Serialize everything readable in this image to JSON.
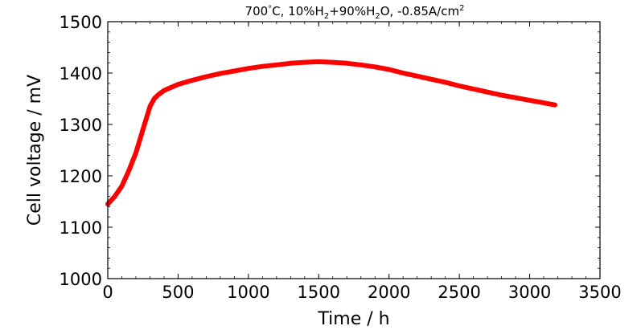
{
  "chart_data": {
    "type": "line",
    "title": {
      "p1": "700",
      "p2": "°",
      "p3": "C, 10%H",
      "p4": "2",
      "p5": "+90%H",
      "p6": "2",
      "p7": "O, -0.85A/cm",
      "p8": "2"
    },
    "xlabel": "Time / h",
    "ylabel": "Cell voltage / mV",
    "xlim": [
      0,
      3500
    ],
    "ylim": [
      1000,
      1500
    ],
    "xticks": [
      "0",
      "500",
      "1000",
      "1500",
      "2000",
      "2500",
      "3000",
      "3500"
    ],
    "yticks": [
      "1000",
      "1100",
      "1200",
      "1300",
      "1400",
      "1500"
    ],
    "grid": false,
    "series_color": "#ff0000",
    "series": [
      {
        "x": [
          0,
          50,
          100,
          150,
          200,
          250,
          300,
          330,
          360,
          400,
          450,
          500,
          600,
          700,
          800,
          900,
          1000,
          1100,
          1200,
          1300,
          1400,
          1500,
          1600,
          1700,
          1800,
          1900,
          2000,
          2100,
          2200,
          2300,
          2400,
          2500,
          2600,
          2700,
          2800,
          2900,
          3000,
          3100,
          3180
        ],
        "y": [
          1145,
          1160,
          1180,
          1210,
          1245,
          1290,
          1335,
          1350,
          1358,
          1366,
          1372,
          1378,
          1386,
          1393,
          1399,
          1404,
          1409,
          1413,
          1416,
          1419,
          1421,
          1422,
          1421,
          1419,
          1416,
          1412,
          1407,
          1400,
          1394,
          1388,
          1382,
          1375,
          1369,
          1363,
          1357,
          1352,
          1347,
          1342,
          1338
        ]
      }
    ]
  }
}
